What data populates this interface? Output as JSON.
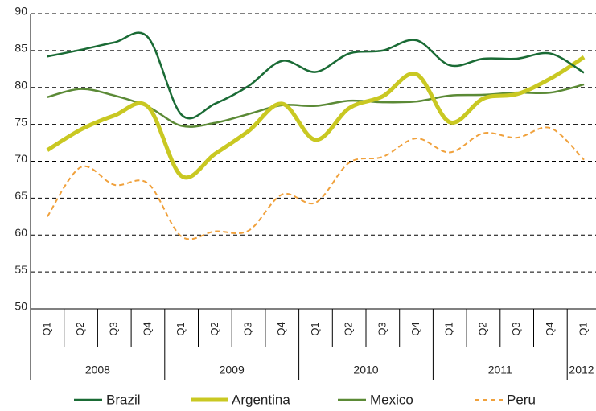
{
  "chart_data": {
    "type": "line",
    "groups": [
      {
        "name": "2008",
        "categories": [
          "Q1",
          "Q2",
          "Q3",
          "Q4"
        ]
      },
      {
        "name": "2009",
        "categories": [
          "Q1",
          "Q2",
          "Q3",
          "Q4"
        ]
      },
      {
        "name": "2010",
        "categories": [
          "Q1",
          "Q2",
          "Q3",
          "Q4"
        ]
      },
      {
        "name": "2011",
        "categories": [
          "Q1",
          "Q2",
          "Q3",
          "Q4"
        ]
      },
      {
        "name": "2012",
        "categories": [
          "Q1"
        ]
      }
    ],
    "series": [
      {
        "name": "Brazil",
        "color": "#1a6b35",
        "width": 2.5,
        "dashed": false,
        "values": [
          84.2,
          85.1,
          86.1,
          86.8,
          76.3,
          77.8,
          80.2,
          83.6,
          82.1,
          84.6,
          85.0,
          86.4,
          83.0,
          83.9,
          83.9,
          84.6,
          82.0
        ]
      },
      {
        "name": "Argentina",
        "color": "#c9c822",
        "width": 5,
        "dashed": false,
        "values": [
          71.5,
          74.3,
          76.2,
          77.4,
          68.0,
          71.0,
          74.1,
          77.8,
          72.9,
          77.2,
          78.8,
          81.8,
          75.3,
          78.5,
          79.1,
          81.2,
          84.1
        ]
      },
      {
        "name": "Mexico",
        "color": "#5b8a36",
        "width": 2.5,
        "dashed": false,
        "values": [
          78.7,
          79.8,
          78.9,
          77.4,
          74.8,
          75.2,
          76.4,
          77.6,
          77.5,
          78.2,
          78.0,
          78.1,
          78.9,
          79.0,
          79.3,
          79.3,
          80.4
        ]
      },
      {
        "name": "Peru",
        "color": "#f0a13c",
        "width": 2,
        "dashed": true,
        "values": [
          62.5,
          69.2,
          66.8,
          67.0,
          59.8,
          60.5,
          60.6,
          65.5,
          64.4,
          69.8,
          70.6,
          73.1,
          71.2,
          73.8,
          73.2,
          74.5,
          70.2
        ]
      }
    ],
    "ylim": [
      50,
      90
    ],
    "yticks": [
      50,
      55,
      60,
      65,
      70,
      75,
      80,
      85,
      90
    ],
    "grid": true,
    "legend": "bottom"
  }
}
